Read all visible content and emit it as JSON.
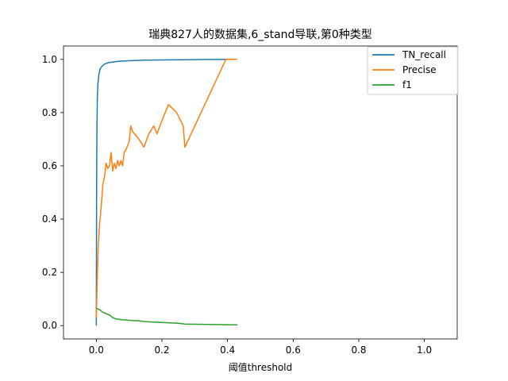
{
  "chart_data": {
    "type": "line",
    "title": "瑞典827人的数据集,6_stand导联,第0种类型",
    "xlabel": "阈值threshold",
    "ylabel": "",
    "xlim": [
      -0.1,
      1.1
    ],
    "ylim": [
      -0.05,
      1.05
    ],
    "xticks": [
      0.0,
      0.2,
      0.4,
      0.6,
      0.8,
      1.0
    ],
    "xtick_labels": [
      "0.0",
      "0.2",
      "0.4",
      "0.6",
      "0.8",
      "1.0"
    ],
    "yticks": [
      0.0,
      0.2,
      0.4,
      0.6,
      0.8,
      1.0
    ],
    "ytick_labels": [
      "0.0",
      "0.2",
      "0.4",
      "0.6",
      "0.8",
      "1.0"
    ],
    "grid": false,
    "legend_position": "top-right",
    "series": [
      {
        "name": "TN_recall",
        "color": "#1f77b4",
        "x": [
          0.0,
          0.001,
          0.002,
          0.003,
          0.005,
          0.008,
          0.012,
          0.018,
          0.025,
          0.035,
          0.05,
          0.07,
          0.1,
          0.15,
          0.2,
          0.3,
          0.43
        ],
        "y": [
          0.0,
          0.55,
          0.75,
          0.85,
          0.91,
          0.945,
          0.965,
          0.975,
          0.982,
          0.987,
          0.99,
          0.993,
          0.995,
          0.997,
          0.998,
          0.999,
          1.0
        ]
      },
      {
        "name": "Precise",
        "color": "#ff7f0e",
        "x": [
          0.0,
          0.003,
          0.006,
          0.01,
          0.013,
          0.017,
          0.02,
          0.025,
          0.03,
          0.035,
          0.04,
          0.045,
          0.05,
          0.055,
          0.06,
          0.065,
          0.07,
          0.075,
          0.08,
          0.085,
          0.09,
          0.1,
          0.105,
          0.11,
          0.13,
          0.145,
          0.16,
          0.175,
          0.185,
          0.2,
          0.22,
          0.245,
          0.265,
          0.27,
          0.395,
          0.43
        ],
        "y": [
          0.03,
          0.18,
          0.3,
          0.38,
          0.42,
          0.48,
          0.53,
          0.56,
          0.61,
          0.59,
          0.6,
          0.65,
          0.58,
          0.61,
          0.59,
          0.62,
          0.6,
          0.62,
          0.6,
          0.65,
          0.66,
          0.69,
          0.75,
          0.73,
          0.7,
          0.67,
          0.72,
          0.75,
          0.72,
          0.77,
          0.83,
          0.8,
          0.75,
          0.67,
          1.0,
          1.0
        ]
      },
      {
        "name": "f1",
        "color": "#2ca02c",
        "x": [
          0.0,
          0.01,
          0.02,
          0.03,
          0.04,
          0.05,
          0.06,
          0.08,
          0.1,
          0.13,
          0.15,
          0.2,
          0.25,
          0.27,
          0.3,
          0.43
        ],
        "y": [
          0.065,
          0.06,
          0.05,
          0.045,
          0.04,
          0.03,
          0.025,
          0.022,
          0.02,
          0.018,
          0.015,
          0.012,
          0.009,
          0.006,
          0.005,
          0.003
        ]
      }
    ]
  }
}
